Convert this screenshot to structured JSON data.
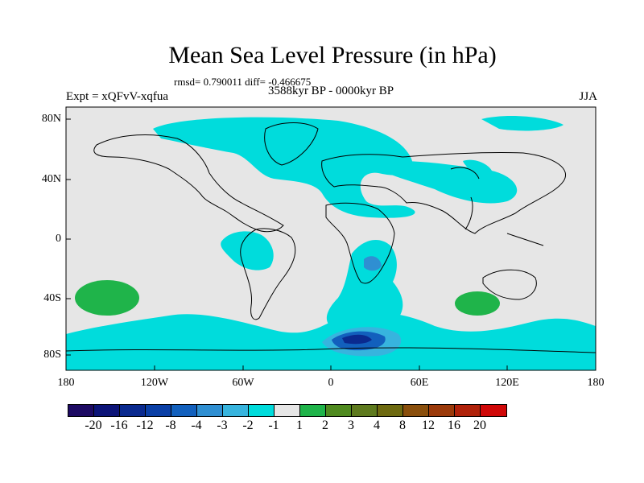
{
  "title": "Mean Sea Level Pressure (in hPa)",
  "stats": "rmsd= 0.790011 diff= -0.466675",
  "period": "3588kyr BP - 0000kyr BP",
  "expt": "Expt = xQFvV-xqfua",
  "season": "JJA",
  "y_axis": [
    "80N",
    "40N",
    "0",
    "40S",
    "80S"
  ],
  "x_axis": [
    "180",
    "120W",
    "60W",
    "0",
    "60E",
    "120E",
    "180"
  ],
  "colorbar": {
    "colors": [
      "#1d0a63",
      "#0c1478",
      "#0a2a8f",
      "#0a3fa6",
      "#1260bd",
      "#2f8fd2",
      "#37b4de",
      "#00dcdc",
      "#e6e6e6",
      "#1fb44a",
      "#4f8a1f",
      "#5e7a1e",
      "#6e6a10",
      "#8a4f0c",
      "#9b3a0a",
      "#b0220a",
      "#d00808"
    ],
    "labels": [
      "-20",
      "-16",
      "-12",
      "-8",
      "-4",
      "-3",
      "-2",
      "-1",
      "1",
      "2",
      "3",
      "4",
      "8",
      "12",
      "16",
      "20"
    ]
  },
  "legend_colors": {
    "land_bg": "#e6e6e6",
    "neg1": "#00dcdc",
    "neg2": "#37b4de",
    "neg3": "#2f8fd2",
    "neg4": "#1260bd",
    "neg8": "#0a3fa6",
    "pos": "#1fb44a"
  }
}
